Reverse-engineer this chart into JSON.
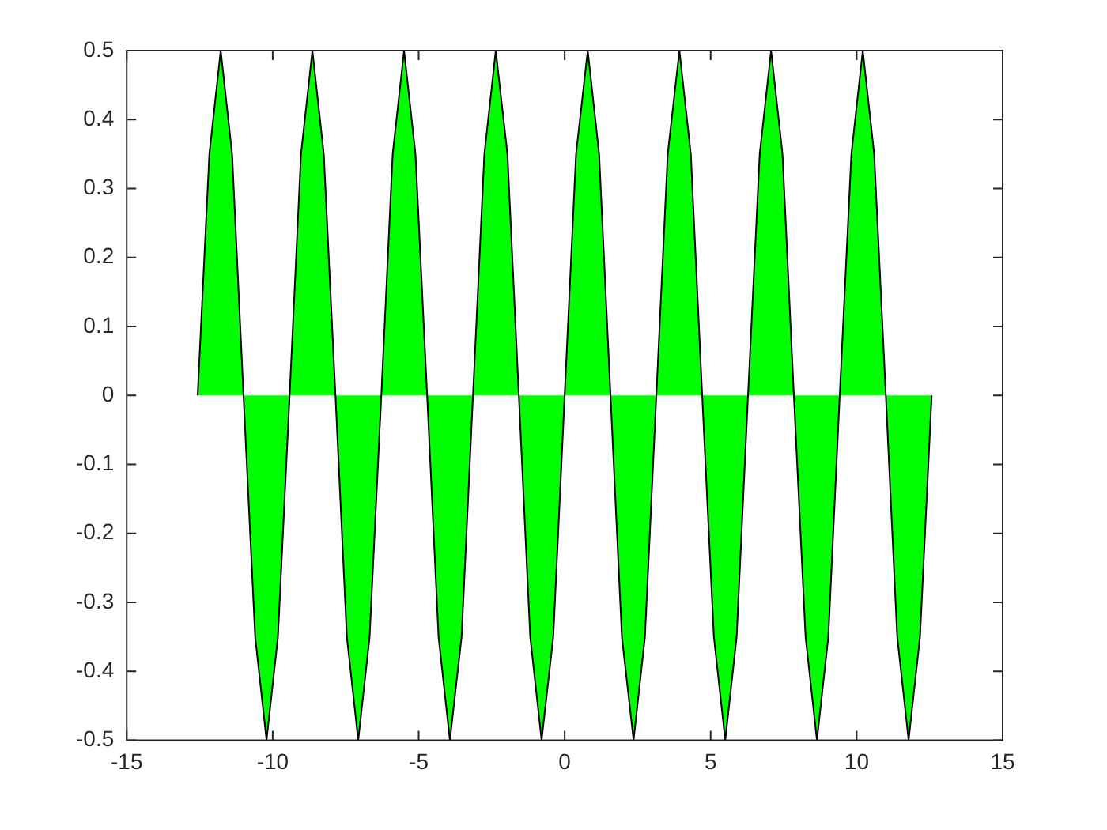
{
  "chart_data": {
    "type": "area",
    "x": [
      -12.57,
      -12.17,
      -11.78,
      -11.39,
      -11.0,
      -10.6,
      -10.21,
      -9.82,
      -9.42,
      -9.03,
      -8.64,
      -8.25,
      -7.85,
      -7.46,
      -7.07,
      -6.68,
      -6.28,
      -5.89,
      -5.5,
      -5.11,
      -4.71,
      -4.32,
      -3.93,
      -3.53,
      -3.14,
      -2.75,
      -2.36,
      -1.96,
      -1.57,
      -1.18,
      -0.79,
      -0.39,
      0,
      0.39,
      0.79,
      1.18,
      1.57,
      1.96,
      2.36,
      2.75,
      3.14,
      3.53,
      3.93,
      4.32,
      4.71,
      5.11,
      5.5,
      5.89,
      6.28,
      6.68,
      7.07,
      7.46,
      7.85,
      8.25,
      8.64,
      9.03,
      9.42,
      9.82,
      10.21,
      10.6,
      11.0,
      11.39,
      11.78,
      12.17,
      12.57
    ],
    "series": [
      {
        "color": "#00ff00",
        "values": [
          0,
          0.35,
          0.5,
          0.35,
          0,
          -0.35,
          -0.5,
          -0.35,
          0,
          0.35,
          0.5,
          0.35,
          0,
          -0.35,
          -0.5,
          -0.35,
          0,
          0.35,
          0.5,
          0.35,
          0,
          -0.35,
          -0.5,
          -0.35,
          0,
          0.35,
          0.5,
          0.35,
          0,
          -0.35,
          -0.5,
          -0.35,
          0,
          0.35,
          0.5,
          0.35,
          0,
          -0.35,
          -0.5,
          -0.35,
          0,
          0.35,
          0.5,
          0.35,
          0,
          -0.35,
          -0.5,
          -0.35,
          0,
          0.35,
          0.5,
          0.35,
          0,
          -0.35,
          -0.5,
          -0.35,
          0,
          0.35,
          0.5,
          0.35,
          0,
          -0.35,
          -0.5,
          -0.35,
          0
        ]
      }
    ],
    "xlim": [
      -15,
      15
    ],
    "xticks": [
      -15,
      -10,
      -5,
      0,
      5,
      10,
      15
    ],
    "ylim": [
      -0.5,
      0.5
    ],
    "yticks": [
      -0.5,
      -0.4,
      -0.3,
      -0.2,
      -0.1,
      0,
      0.1,
      0.2,
      0.3,
      0.4,
      0.5
    ],
    "grid": false,
    "legend": false,
    "marker": "none",
    "line_style": "solid"
  }
}
